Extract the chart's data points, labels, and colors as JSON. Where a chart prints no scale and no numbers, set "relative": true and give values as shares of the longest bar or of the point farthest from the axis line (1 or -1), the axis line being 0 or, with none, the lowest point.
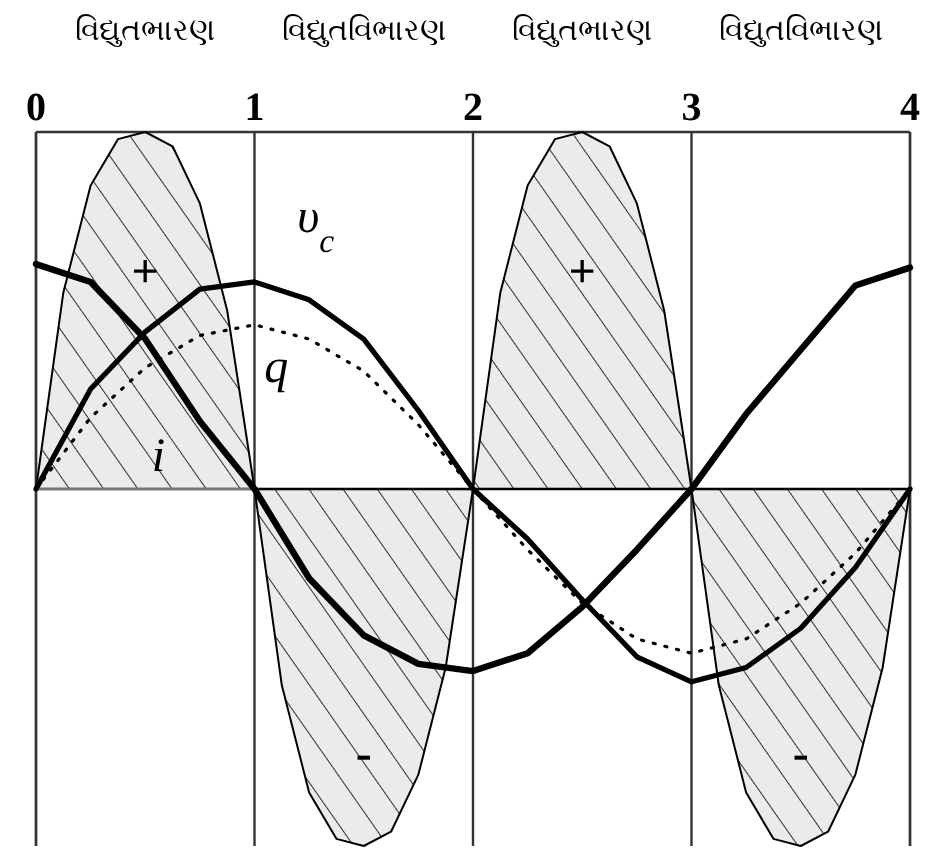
{
  "chart_data": {
    "type": "line",
    "relative": true,
    "x": [
      0,
      0.25,
      0.5,
      0.75,
      1,
      1.25,
      1.5,
      1.75,
      2,
      2.25,
      2.5,
      2.75,
      3,
      3.25,
      3.5,
      3.75,
      4
    ],
    "xlim": [
      0,
      4
    ],
    "xticks": [
      0,
      1,
      2,
      3,
      4
    ],
    "grid": "x",
    "ref_lines": [
      {
        "axis": "y",
        "value": 0,
        "color": "#777777"
      }
    ],
    "annotations": [
      "વિદ્યુતભારણ",
      "વિદ્યુતવિભારણ",
      "વિદ્યુતભારણ",
      "વિદ્યુતવિભારણ",
      "+",
      "+",
      "-",
      "-"
    ],
    "series": [
      {
        "type": "area",
        "color": "#000000",
        "x": [
          0,
          0.125,
          0.25,
          0.375,
          0.5,
          0.625,
          0.75,
          0.875,
          1
        ],
        "values": [
          0,
          0.55,
          0.85,
          0.98,
          1,
          0.96,
          0.8,
          0.5,
          0
        ]
      },
      {
        "type": "area",
        "color": "#000000",
        "x": [
          1,
          1.125,
          1.25,
          1.375,
          1.5,
          1.625,
          1.75,
          1.875,
          2
        ],
        "values": [
          0,
          -0.55,
          -0.85,
          -0.98,
          -1,
          -0.96,
          -0.8,
          -0.5,
          0
        ]
      },
      {
        "type": "area",
        "color": "#000000",
        "x": [
          2,
          2.125,
          2.25,
          2.375,
          2.5,
          2.625,
          2.75,
          2.875,
          3
        ],
        "values": [
          0,
          0.55,
          0.85,
          0.98,
          1,
          0.96,
          0.8,
          0.5,
          0
        ]
      },
      {
        "type": "area",
        "color": "#000000",
        "x": [
          3,
          3.125,
          3.25,
          3.375,
          3.5,
          3.625,
          3.75,
          3.875,
          4
        ],
        "values": [
          0,
          -0.55,
          -0.85,
          -0.98,
          -1,
          -0.96,
          -0.8,
          -0.5,
          0
        ]
      },
      {
        "name": "i",
        "color": "#000000",
        "line_style": "solid",
        "values": [
          0.63,
          0.58,
          0.42,
          0.19,
          0,
          -0.25,
          -0.41,
          -0.49,
          -0.51,
          -0.46,
          -0.33,
          -0.17,
          0,
          0.21,
          0.39,
          0.57,
          0.62
        ]
      },
      {
        "name": "υ$_{c}$",
        "color": "#000000",
        "line_style": "solid",
        "values": [
          0,
          0.28,
          0.44,
          0.56,
          0.58,
          0.53,
          0.42,
          0.22,
          0,
          -0.14,
          -0.31,
          -0.47,
          -0.54,
          -0.5,
          -0.39,
          -0.22,
          0
        ]
      },
      {
        "name": "q",
        "color": "#000000",
        "line_style": "dotted",
        "values": [
          0,
          0.2,
          0.34,
          0.43,
          0.46,
          0.42,
          0.33,
          0.18,
          0,
          -0.17,
          -0.32,
          -0.42,
          -0.46,
          -0.42,
          -0.32,
          -0.18,
          0
        ]
      }
    ]
  }
}
